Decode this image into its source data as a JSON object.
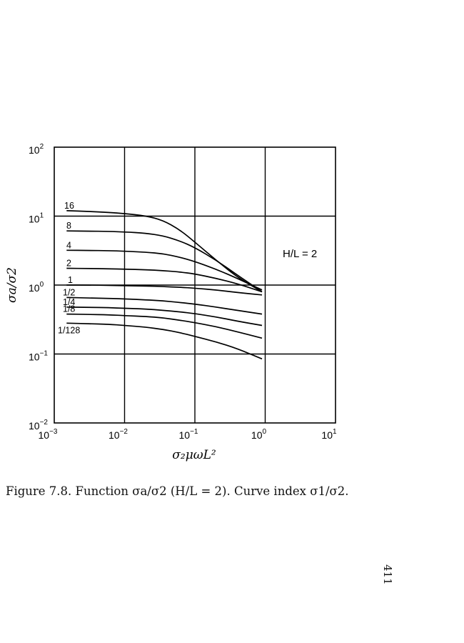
{
  "figure": {
    "caption": "Figure 7.8. Function σa/σ2 (H/L = 2). Curve index σ1/σ2.",
    "page_number": "411"
  },
  "chart_data": {
    "type": "line",
    "x_scale": "log",
    "y_scale": "log",
    "xlim": [
      0.001,
      10
    ],
    "ylim": [
      0.01,
      100
    ],
    "grid": true,
    "xlabel": "σ₂μωL²",
    "ylabel": "σa/σ2",
    "x_ticks": [
      {
        "base": "10",
        "exp": "−3",
        "value": 0.001
      },
      {
        "base": "10",
        "exp": "−2",
        "value": 0.01
      },
      {
        "base": "10",
        "exp": "−1",
        "value": 0.1
      },
      {
        "base": "10",
        "exp": "0",
        "value": 1
      },
      {
        "base": "10",
        "exp": "1",
        "value": 10
      }
    ],
    "y_ticks": [
      {
        "base": "10",
        "exp": "−2",
        "value": 0.01
      },
      {
        "base": "10",
        "exp": "−1",
        "value": 0.1
      },
      {
        "base": "10",
        "exp": "0",
        "value": 1
      },
      {
        "base": "10",
        "exp": "1",
        "value": 10
      },
      {
        "base": "10",
        "exp": "2",
        "value": 100
      }
    ],
    "annotations": [
      "H/L = 2"
    ],
    "series": [
      {
        "name": "16",
        "x": [
          0.0015,
          0.003,
          0.006,
          0.01,
          0.02,
          0.035,
          0.06,
          0.1,
          0.2,
          0.4,
          0.9
        ],
        "y": [
          12.0,
          11.7,
          11.3,
          10.9,
          10.1,
          8.7,
          6.4,
          4.2,
          2.3,
          1.3,
          0.8
        ]
      },
      {
        "name": "8",
        "x": [
          0.0015,
          0.003,
          0.006,
          0.01,
          0.02,
          0.035,
          0.06,
          0.1,
          0.2,
          0.4,
          0.9
        ],
        "y": [
          6.1,
          6.05,
          6.0,
          5.9,
          5.65,
          5.2,
          4.4,
          3.5,
          2.3,
          1.4,
          0.8
        ]
      },
      {
        "name": "4",
        "x": [
          0.0015,
          0.003,
          0.006,
          0.01,
          0.02,
          0.035,
          0.06,
          0.1,
          0.2,
          0.4,
          0.9
        ],
        "y": [
          3.2,
          3.18,
          3.15,
          3.1,
          3.0,
          2.85,
          2.55,
          2.2,
          1.7,
          1.25,
          0.85
        ]
      },
      {
        "name": "2",
        "x": [
          0.0015,
          0.003,
          0.006,
          0.01,
          0.02,
          0.035,
          0.06,
          0.1,
          0.2,
          0.4,
          0.9
        ],
        "y": [
          1.75,
          1.74,
          1.72,
          1.7,
          1.67,
          1.62,
          1.55,
          1.45,
          1.25,
          1.05,
          0.8
        ]
      },
      {
        "name": "1",
        "x": [
          0.0015,
          0.003,
          0.006,
          0.01,
          0.02,
          0.035,
          0.06,
          0.1,
          0.2,
          0.4,
          0.9
        ],
        "y": [
          1.0,
          1.0,
          0.99,
          0.98,
          0.97,
          0.95,
          0.93,
          0.9,
          0.85,
          0.78,
          0.72
        ]
      },
      {
        "name": "1/2",
        "x": [
          0.0015,
          0.003,
          0.006,
          0.01,
          0.02,
          0.035,
          0.06,
          0.1,
          0.2,
          0.4,
          0.9
        ],
        "y": [
          0.66,
          0.65,
          0.64,
          0.63,
          0.61,
          0.59,
          0.56,
          0.53,
          0.48,
          0.43,
          0.38
        ]
      },
      {
        "name": "1/4",
        "x": [
          0.0015,
          0.003,
          0.006,
          0.01,
          0.02,
          0.035,
          0.06,
          0.1,
          0.2,
          0.4,
          0.9
        ],
        "y": [
          0.48,
          0.475,
          0.47,
          0.46,
          0.45,
          0.43,
          0.41,
          0.385,
          0.345,
          0.3,
          0.26
        ]
      },
      {
        "name": "1/8",
        "x": [
          0.0015,
          0.003,
          0.006,
          0.01,
          0.02,
          0.035,
          0.06,
          0.1,
          0.2,
          0.4,
          0.9
        ],
        "y": [
          0.38,
          0.375,
          0.37,
          0.36,
          0.35,
          0.335,
          0.31,
          0.285,
          0.25,
          0.21,
          0.17
        ]
      },
      {
        "name": "1/128",
        "x": [
          0.0015,
          0.003,
          0.006,
          0.01,
          0.02,
          0.035,
          0.06,
          0.1,
          0.2,
          0.4,
          0.9
        ],
        "y": [
          0.28,
          0.275,
          0.27,
          0.26,
          0.245,
          0.228,
          0.205,
          0.18,
          0.15,
          0.12,
          0.085
        ]
      }
    ]
  }
}
